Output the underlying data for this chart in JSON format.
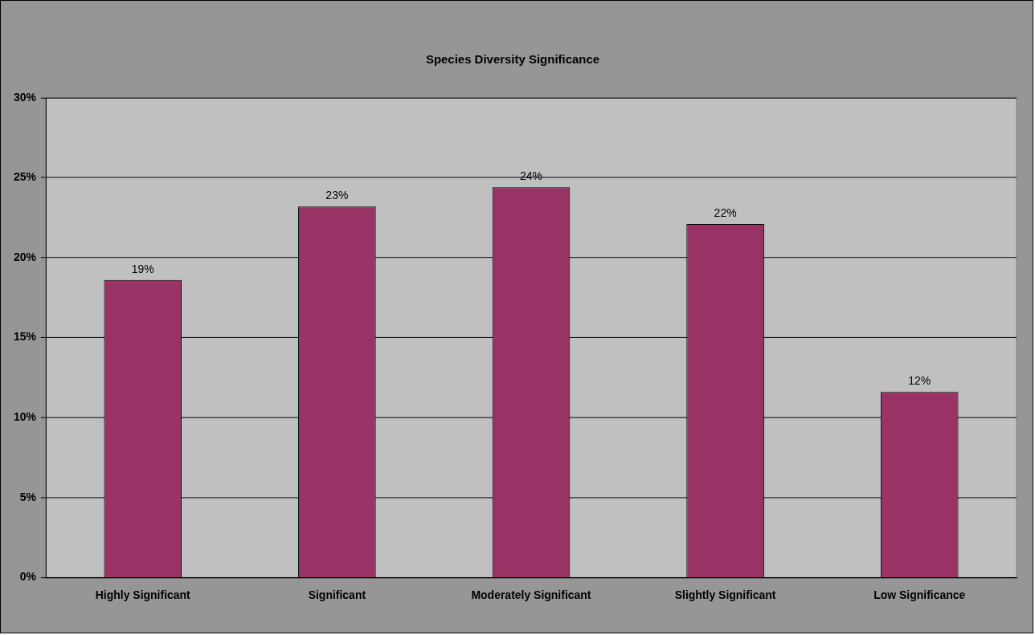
{
  "chart_data": {
    "type": "bar",
    "title": "Species Diversity Significance",
    "categories": [
      "Highly Significant",
      "Significant",
      "Moderately Significant",
      "Slightly Significant",
      "Low Significance"
    ],
    "values": [
      18.6,
      23.2,
      24.4,
      22.1,
      11.6
    ],
    "value_labels": [
      "19%",
      "23%",
      "24%",
      "22%",
      "12%"
    ],
    "color": "#993366",
    "ylim": [
      0,
      30
    ],
    "yticks": [
      {
        "value": 0,
        "label": "0%"
      },
      {
        "value": 5,
        "label": "5%"
      },
      {
        "value": 10,
        "label": "10%"
      },
      {
        "value": 15,
        "label": "15%"
      },
      {
        "value": 20,
        "label": "20%"
      },
      {
        "value": 25,
        "label": "25%"
      },
      {
        "value": 30,
        "label": "30%"
      }
    ],
    "grid": "y",
    "legend": false
  }
}
